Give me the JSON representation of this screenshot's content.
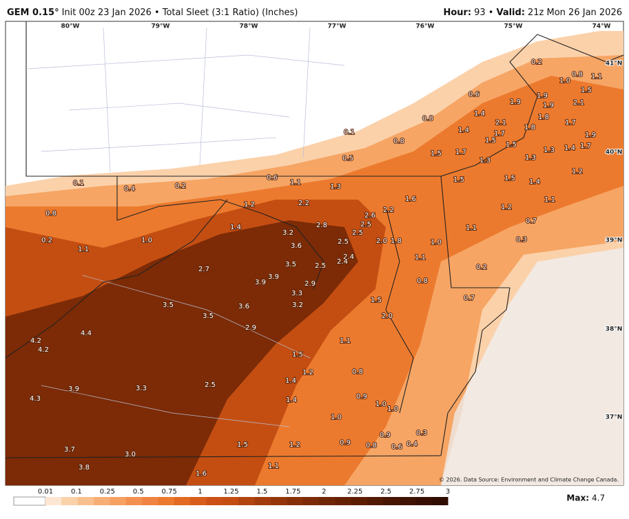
{
  "header": {
    "model": "GEM 0.15°",
    "init": "Init 00z 23 Jan 2026",
    "product": "• Total Sleet (3:1 Ratio) (Inches)",
    "hour_label": "Hour:",
    "hour": "93 •",
    "valid_label": "Valid:",
    "valid": "21z Mon 26 Jan 2026"
  },
  "map": {
    "lon_labels": [
      "80°W",
      "79°W",
      "78°W",
      "77°W",
      "76°W",
      "75°W",
      "74°W"
    ],
    "lat_labels": [
      "41°N",
      "40°N",
      "39°N",
      "38°N",
      "37°N"
    ],
    "point_labels": [
      "0.2",
      "0.8",
      "1.0",
      "1.1",
      "1.5",
      "0.6",
      "1.9",
      "1.9",
      "2.1",
      "1.9",
      "1.4",
      "2.1",
      "1.8",
      "1.7",
      "0.8",
      "1.4",
      "1.7",
      "1.8",
      "0.1",
      "0.8",
      "1.5",
      "1.5",
      "1.9",
      "1.5",
      "1.7",
      "1.3",
      "1.4",
      "1.7",
      "0.5",
      "1.3",
      "1.3",
      "1.2",
      "0.1",
      "0.4",
      "0.2",
      "0.6",
      "1.1",
      "1.3",
      "1.5",
      "1.5",
      "1.4",
      "1.6",
      "2.2",
      "1.2",
      "0.8",
      "2.6",
      "2.2",
      "2.5",
      "2.8",
      "1.4",
      "1.2",
      "1.1",
      "2.5",
      "1.1",
      "0.7",
      "0.2",
      "1.0",
      "3.2",
      "2.5",
      "2.0",
      "1.8",
      "1.0",
      "0.3",
      "1.1",
      "3.6",
      "2.4",
      "2.5",
      "2.4",
      "3.5",
      "1.1",
      "2.7",
      "0.2",
      "3.9",
      "3.9",
      "2.9",
      "0.8",
      "3.3",
      "1.5",
      "0.7",
      "3.5",
      "3.6",
      "3.2",
      "2.0",
      "3.5",
      "2.9",
      "4.4",
      "4.2",
      "4.2",
      "1.1",
      "1.5",
      "1.2",
      "0.8",
      "2.5",
      "1.4",
      "3.9",
      "3.3",
      "0.9",
      "4.3",
      "1.4",
      "1.0",
      "1.0",
      "1.0",
      "0.3",
      "0.9",
      "0.8",
      "0.6",
      "0.4",
      "0.9",
      "1.2",
      "1.5",
      "3.7",
      "3.0",
      "3.8",
      "1.1",
      "1.6"
    ]
  },
  "legend": {
    "ticks": [
      "0.01",
      "0.1",
      "0.25",
      "0.5",
      "0.75",
      "1",
      "1.25",
      "1.5",
      "1.75",
      "2",
      "2.25",
      "2.5",
      "2.75",
      "3"
    ],
    "colors": [
      "#ffffff",
      "#fde6d2",
      "#fbd1aa",
      "#f9c08f",
      "#f7ae74",
      "#f6a061",
      "#f39050",
      "#f08341",
      "#ec7a2e",
      "#e26a23",
      "#d85c1b",
      "#cc5015",
      "#c44e12",
      "#b24410",
      "#a23c0c",
      "#94350a",
      "#873008",
      "#7c2b06",
      "#702505",
      "#662104",
      "#5c1d03",
      "#521903",
      "#481502",
      "#401202",
      "#380f01",
      "#300c01"
    ]
  },
  "footer": {
    "credit": "© 2026. Data Source: Environment and Climate Change Canada.",
    "max_label": "Max:",
    "max": "4.7"
  }
}
